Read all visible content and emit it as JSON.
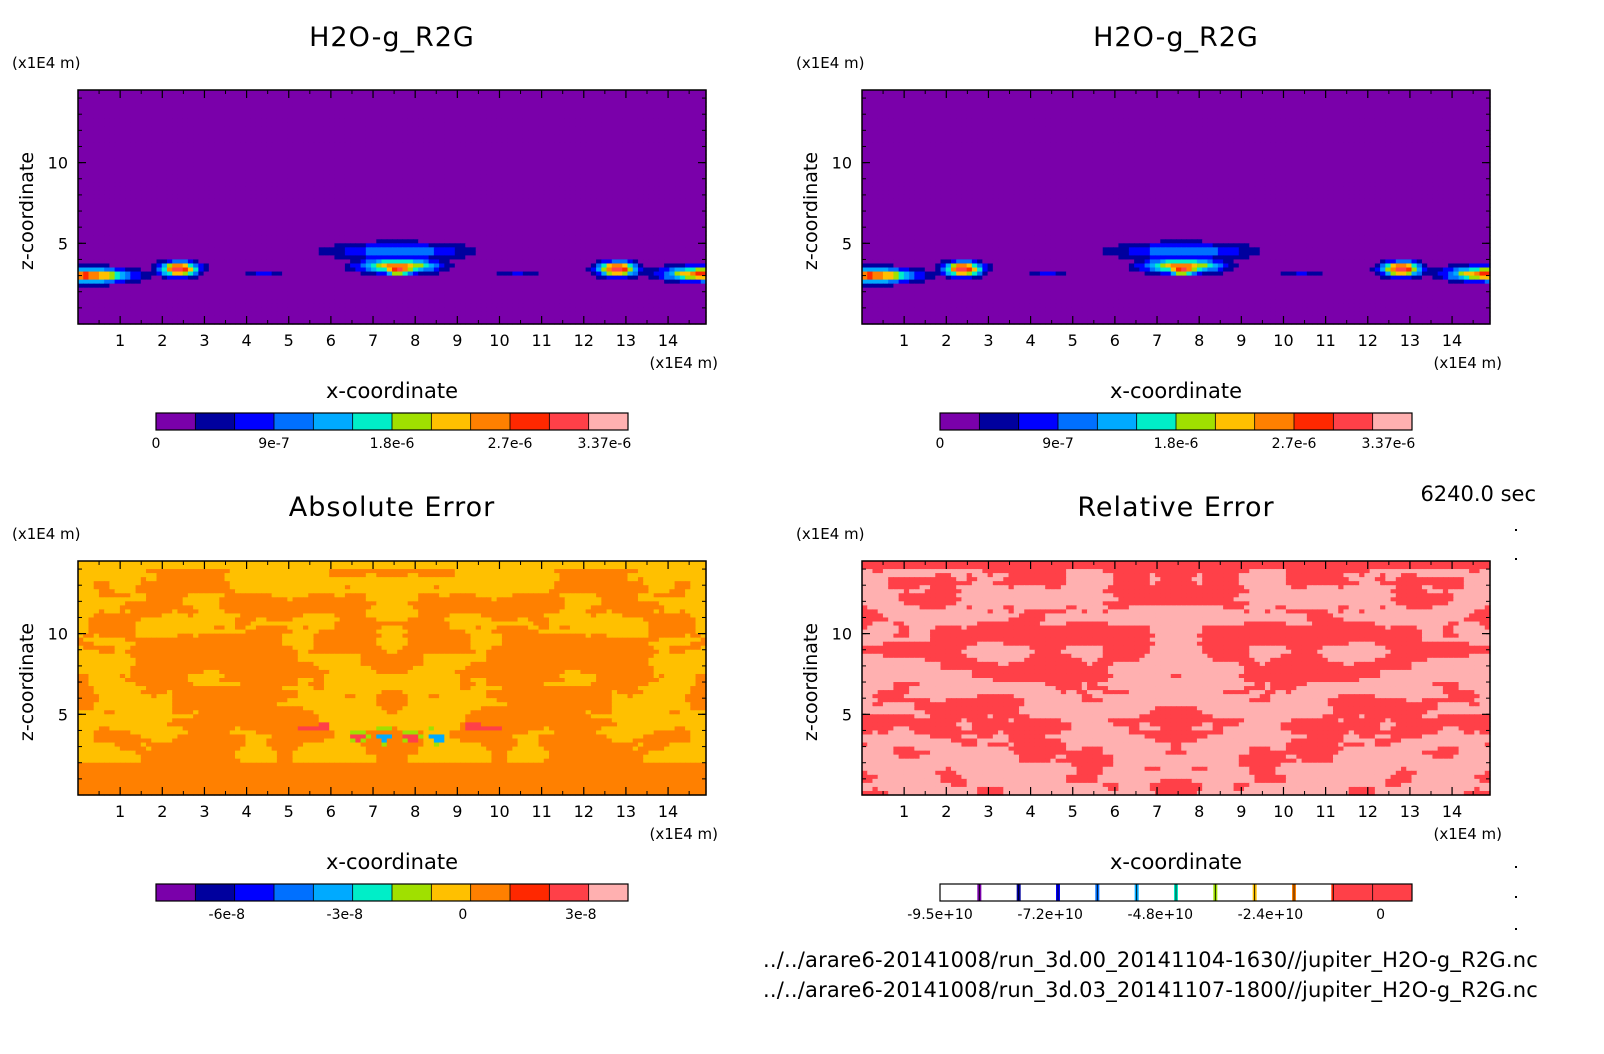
{
  "time_label": "6240.0 sec",
  "files": [
    "../../arare6-20141008/run_3d.00_20141104-1630//jupiter_H2O-g_R2G.nc",
    "../../arare6-20141008/run_3d.03_20141107-1800//jupiter_H2O-g_R2G.nc"
  ],
  "chart_data": [
    {
      "type": "heatmap",
      "title": "H2O-g_R2G",
      "xlabel": "x-coordinate",
      "ylabel": "z-coordinate",
      "x_unit": "(x1E4 m)",
      "y_unit": "(x1E4 m)",
      "xlim": [
        0,
        14.9
      ],
      "ylim": [
        0,
        14.5
      ],
      "x_ticks": [
        "1",
        "2",
        "3",
        "4",
        "5",
        "6",
        "7",
        "8",
        "9",
        "10",
        "11",
        "12",
        "13",
        "14"
      ],
      "y_ticks": [
        "5",
        "10"
      ],
      "field": "vapor",
      "colorbar": {
        "colors": [
          "#7a00aa",
          "#00009e",
          "#0000ff",
          "#0070ff",
          "#00aaff",
          "#00eec8",
          "#a0e000",
          "#ffc000",
          "#ff8000",
          "#ff2800",
          "#ff4048",
          "#ffb0b0"
        ],
        "tick_labels": [
          "0",
          "9e-7",
          "1.8e-6",
          "2.7e-6",
          "3.37e-6"
        ]
      }
    },
    {
      "type": "heatmap",
      "title": "H2O-g_R2G",
      "xlabel": "x-coordinate",
      "ylabel": "z-coordinate",
      "x_unit": "(x1E4 m)",
      "y_unit": "(x1E4 m)",
      "xlim": [
        0,
        14.9
      ],
      "ylim": [
        0,
        14.5
      ],
      "x_ticks": [
        "1",
        "2",
        "3",
        "4",
        "5",
        "6",
        "7",
        "8",
        "9",
        "10",
        "11",
        "12",
        "13",
        "14"
      ],
      "y_ticks": [
        "5",
        "10"
      ],
      "field": "vapor",
      "colorbar": {
        "colors": [
          "#7a00aa",
          "#00009e",
          "#0000ff",
          "#0070ff",
          "#00aaff",
          "#00eec8",
          "#a0e000",
          "#ffc000",
          "#ff8000",
          "#ff2800",
          "#ff4048",
          "#ffb0b0"
        ],
        "tick_labels": [
          "0",
          "9e-7",
          "1.8e-6",
          "2.7e-6",
          "3.37e-6"
        ]
      }
    },
    {
      "type": "heatmap",
      "title": "Absolute Error",
      "xlabel": "x-coordinate",
      "ylabel": "z-coordinate",
      "x_unit": "(x1E4 m)",
      "y_unit": "(x1E4 m)",
      "xlim": [
        0,
        14.9
      ],
      "ylim": [
        0,
        14.5
      ],
      "x_ticks": [
        "1",
        "2",
        "3",
        "4",
        "5",
        "6",
        "7",
        "8",
        "9",
        "10",
        "11",
        "12",
        "13",
        "14"
      ],
      "y_ticks": [
        "5",
        "10"
      ],
      "field": "abs_error",
      "colorbar": {
        "colors": [
          "#7a00aa",
          "#00009e",
          "#0000ff",
          "#0070ff",
          "#00aaff",
          "#00eec8",
          "#a0e000",
          "#ffc000",
          "#ff8000",
          "#ff2800",
          "#ff4048",
          "#ffb0b0"
        ],
        "tick_labels": [
          "-6e-8",
          "-3e-8",
          "0",
          "3e-8"
        ]
      }
    },
    {
      "type": "heatmap",
      "title": "Relative Error",
      "xlabel": "x-coordinate",
      "ylabel": "z-coordinate",
      "x_unit": "(x1E4 m)",
      "y_unit": "(x1E4 m)",
      "xlim": [
        0,
        14.9
      ],
      "ylim": [
        0,
        14.5
      ],
      "x_ticks": [
        "1",
        "2",
        "3",
        "4",
        "5",
        "6",
        "7",
        "8",
        "9",
        "10",
        "11",
        "12",
        "13",
        "14"
      ],
      "y_ticks": [
        "5",
        "10"
      ],
      "field": "rel_error",
      "colorbar": {
        "colors": [
          "#7a00aa",
          "#00009e",
          "#0000ff",
          "#0070ff",
          "#00aaff",
          "#00eec8",
          "#a0e000",
          "#ffc000",
          "#ff8000",
          "#ff2800",
          "#ff4048",
          "#ffb0b0"
        ],
        "tick_labels": [
          "-9.5e+10",
          "-7.2e+10",
          "-4.8e+10",
          "-2.4e+10",
          "0"
        ]
      }
    }
  ]
}
